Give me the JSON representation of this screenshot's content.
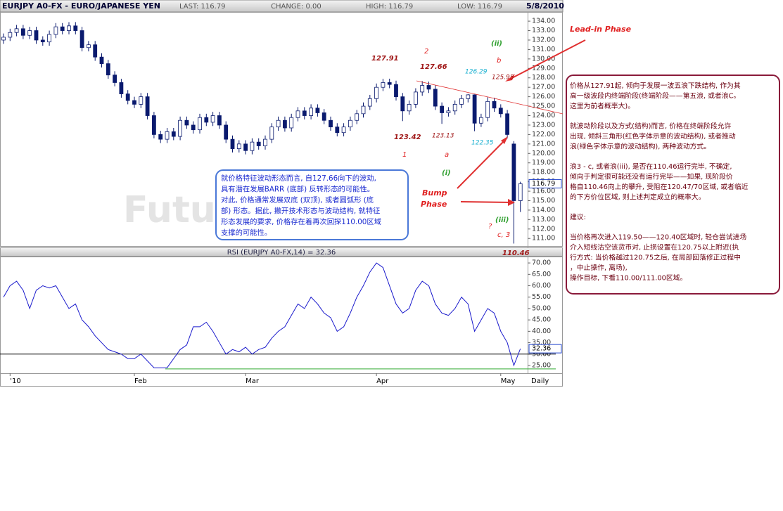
{
  "header": {
    "symbol": "EURJPY A0-FX - EURO/JAPANESE YEN",
    "last": "LAST: 116.79",
    "change": "CHANGE: 0.00",
    "high": "HIGH: 116.79",
    "low": "LOW: 116.79",
    "date": "5/8/2010"
  },
  "chart_data": {
    "type": "candlestick",
    "ylim": [
      110.2,
      134.9
    ],
    "yticks": [
      {
        "value": 134,
        "label": "134.00"
      },
      {
        "value": 133,
        "label": "133.00"
      },
      {
        "value": 132,
        "label": "132.00"
      },
      {
        "value": 131,
        "label": "131.00"
      },
      {
        "value": 130,
        "label": "130.00"
      },
      {
        "value": 129,
        "label": "129.00"
      },
      {
        "value": 128,
        "label": "128.00"
      },
      {
        "value": 127,
        "label": "127.00"
      },
      {
        "value": 126,
        "label": "126.00"
      },
      {
        "value": 125,
        "label": "125.00"
      },
      {
        "value": 124,
        "label": "124.00"
      },
      {
        "value": 123,
        "label": "123.00"
      },
      {
        "value": 122,
        "label": "122.00"
      },
      {
        "value": 121,
        "label": "121.00"
      },
      {
        "value": 120,
        "label": "120.00"
      },
      {
        "value": 119,
        "label": "119.00"
      },
      {
        "value": 118,
        "label": "118.00"
      },
      {
        "value": 117,
        "label": "117.00"
      },
      {
        "value": 116,
        "label": "116.00"
      },
      {
        "value": 115,
        "label": "115.00"
      },
      {
        "value": 114,
        "label": "114.00"
      },
      {
        "value": 113,
        "label": "113.00"
      },
      {
        "value": 112,
        "label": "112.00"
      },
      {
        "value": 111,
        "label": "111.00"
      }
    ],
    "last_price": {
      "value": 116.79,
      "label": "116.79"
    },
    "up_color": "#ffffff",
    "down_color": "#0a1a6e",
    "ohlc": [
      [
        132.0,
        132.7,
        131.6,
        132.3
      ],
      [
        132.3,
        133.2,
        131.9,
        132.8
      ],
      [
        132.8,
        133.6,
        132.4,
        133.2
      ],
      [
        133.2,
        133.6,
        132.1,
        132.5
      ],
      [
        132.5,
        133.4,
        132.1,
        133.0
      ],
      [
        133.0,
        133.4,
        131.6,
        132.0
      ],
      [
        132.0,
        132.4,
        131.4,
        131.8
      ],
      [
        131.8,
        133.0,
        131.4,
        132.6
      ],
      [
        132.6,
        133.8,
        132.2,
        133.4
      ],
      [
        133.4,
        133.8,
        132.6,
        133.0
      ],
      [
        133.0,
        133.9,
        132.6,
        133.5
      ],
      [
        133.5,
        133.9,
        132.6,
        133.0
      ],
      [
        133.0,
        133.4,
        130.8,
        131.2
      ],
      [
        131.2,
        131.9,
        130.8,
        131.5
      ],
      [
        131.5,
        131.9,
        129.8,
        130.2
      ],
      [
        130.2,
        130.6,
        129.1,
        129.5
      ],
      [
        129.5,
        129.9,
        127.9,
        128.3
      ],
      [
        128.3,
        128.7,
        127.1,
        127.5
      ],
      [
        127.5,
        127.9,
        125.9,
        126.3
      ],
      [
        126.3,
        126.7,
        125.2,
        125.6
      ],
      [
        125.6,
        126.0,
        124.8,
        125.2
      ],
      [
        125.2,
        126.4,
        124.8,
        126.0
      ],
      [
        126.0,
        126.4,
        123.6,
        124.0
      ],
      [
        124.0,
        124.4,
        121.6,
        122.0
      ],
      [
        122.0,
        122.4,
        121.1,
        121.5
      ],
      [
        121.5,
        122.7,
        121.1,
        122.3
      ],
      [
        122.3,
        122.7,
        121.4,
        121.8
      ],
      [
        121.8,
        123.9,
        121.4,
        123.5
      ],
      [
        123.5,
        123.9,
        122.6,
        123.0
      ],
      [
        123.0,
        123.4,
        122.1,
        122.5
      ],
      [
        122.5,
        124.2,
        122.1,
        123.8
      ],
      [
        123.8,
        124.2,
        122.9,
        123.3
      ],
      [
        123.3,
        124.4,
        122.9,
        124.0
      ],
      [
        124.0,
        124.4,
        122.6,
        123.0
      ],
      [
        123.0,
        123.4,
        121.1,
        121.5
      ],
      [
        121.5,
        121.9,
        120.1,
        120.5
      ],
      [
        120.5,
        121.4,
        120.1,
        121.0
      ],
      [
        121.0,
        121.4,
        119.9,
        120.3
      ],
      [
        120.3,
        121.6,
        119.9,
        121.2
      ],
      [
        121.2,
        121.6,
        120.4,
        120.8
      ],
      [
        120.8,
        121.9,
        120.4,
        121.5
      ],
      [
        121.5,
        123.2,
        121.1,
        122.8
      ],
      [
        122.8,
        123.9,
        122.4,
        123.5
      ],
      [
        123.5,
        123.9,
        122.3,
        122.7
      ],
      [
        122.7,
        124.2,
        122.3,
        123.8
      ],
      [
        123.8,
        124.9,
        123.4,
        124.5
      ],
      [
        124.5,
        124.9,
        123.6,
        124.0
      ],
      [
        124.0,
        125.2,
        123.6,
        124.8
      ],
      [
        124.8,
        125.2,
        123.9,
        124.3
      ],
      [
        124.3,
        124.7,
        123.1,
        123.5
      ],
      [
        123.5,
        123.9,
        122.4,
        122.8
      ],
      [
        122.8,
        123.2,
        121.8,
        122.2
      ],
      [
        122.2,
        123.2,
        121.8,
        122.8
      ],
      [
        122.8,
        123.9,
        122.4,
        123.5
      ],
      [
        123.5,
        124.6,
        123.1,
        124.2
      ],
      [
        124.2,
        125.4,
        123.8,
        125.0
      ],
      [
        125.0,
        126.2,
        124.6,
        125.8
      ],
      [
        125.8,
        127.4,
        125.4,
        127.0
      ],
      [
        127.0,
        127.9,
        126.6,
        127.5
      ],
      [
        127.5,
        127.91,
        126.9,
        127.3
      ],
      [
        127.3,
        127.7,
        125.6,
        126.0
      ],
      [
        126.0,
        126.4,
        123.42,
        124.5
      ],
      [
        124.5,
        125.6,
        124.1,
        125.2
      ],
      [
        125.2,
        126.9,
        124.8,
        126.5
      ],
      [
        126.5,
        127.66,
        126.1,
        127.2
      ],
      [
        127.2,
        127.6,
        126.4,
        126.8
      ],
      [
        126.8,
        127.2,
        124.6,
        125.0
      ],
      [
        125.0,
        125.4,
        123.13,
        124.3
      ],
      [
        124.3,
        124.9,
        123.9,
        124.5
      ],
      [
        124.5,
        125.6,
        124.1,
        125.2
      ],
      [
        125.2,
        126.2,
        124.8,
        125.8
      ],
      [
        125.8,
        126.29,
        125.4,
        126.2
      ],
      [
        126.2,
        126.25,
        122.35,
        123.2
      ],
      [
        123.2,
        124.2,
        122.8,
        123.8
      ],
      [
        123.8,
        125.95,
        123.4,
        125.5
      ],
      [
        125.5,
        125.9,
        124.4,
        124.8
      ],
      [
        124.8,
        125.2,
        123.8,
        124.2
      ],
      [
        124.2,
        124.6,
        121.6,
        122.0
      ],
      [
        121.0,
        121.3,
        110.46,
        115.0
      ],
      [
        115.0,
        117.0,
        113.8,
        116.79
      ]
    ],
    "date_labels": [
      {
        "index": 1,
        "label": "'10"
      },
      {
        "index": 20,
        "label": "Feb"
      },
      {
        "index": 37,
        "label": "Mar"
      },
      {
        "index": 57,
        "label": "Apr"
      },
      {
        "index": 76,
        "label": "May"
      }
    ],
    "period": "Daily",
    "rsi": {
      "title": "RSI (EURJPY A0-FX,14) = 32.36",
      "color": "#1a1acc",
      "ylim": [
        21.6,
        72.5
      ],
      "yticks": [
        {
          "value": 70,
          "label": "70.00"
        },
        {
          "value": 65,
          "label": "65.00"
        },
        {
          "value": 60,
          "label": "60.00"
        },
        {
          "value": 55,
          "label": "55.00"
        },
        {
          "value": 50,
          "label": "50.00"
        },
        {
          "value": 45,
          "label": "45.00"
        },
        {
          "value": 40,
          "label": "40.00"
        },
        {
          "value": 35,
          "label": "35.00"
        },
        {
          "value": 30,
          "label": "30.00"
        },
        {
          "value": 25,
          "label": "25.00"
        }
      ],
      "last": {
        "value": 32.36,
        "label": "32.36"
      },
      "reference_lines": [
        {
          "value": 30,
          "color": "#000000"
        },
        {
          "value": 23.5,
          "color": "#33aa33"
        }
      ],
      "values": [
        55,
        60,
        62,
        58,
        50,
        58,
        60,
        59,
        60,
        55,
        50,
        52,
        45,
        42,
        38,
        35,
        32,
        31,
        30,
        28,
        28,
        30,
        27,
        24,
        24,
        24,
        28,
        32,
        34,
        42,
        42,
        44,
        40,
        35,
        30,
        32,
        31,
        33,
        30,
        32,
        33,
        37,
        40,
        42,
        47,
        52,
        50,
        55,
        52,
        48,
        46,
        40,
        42,
        48,
        55,
        60,
        66,
        70,
        68,
        60,
        52,
        48,
        50,
        58,
        62,
        60,
        52,
        48,
        47,
        50,
        55,
        52,
        40,
        45,
        50,
        48,
        40,
        35,
        25,
        32.36
      ]
    }
  },
  "annotations": {
    "p12791": "127.91",
    "n2": "2",
    "p12766": "127.66",
    "p12629": "126.29",
    "ii": "(ii)",
    "b": "b",
    "p12595": "125.95",
    "p12342": "123.42",
    "p12313": "123.13",
    "p12235": "122.35",
    "n1": "1",
    "a": "a",
    "i": "(i)",
    "iii": "(iii)",
    "q": "?",
    "c3": "c, 3",
    "p11046": "110.46",
    "lead": "Lead-in Phase",
    "bump": "Bump",
    "phase": "Phase",
    "watermark": "Futur"
  },
  "left_note": [
    "就价格特征波动形态而言, 自127.66向下的波动,",
    "具有潜在发展BARR (底部) 反转形态的可能性。",
    "对此, 价格通常发展双底 (双顶), 或者圆弧形 (底",
    "部) 形态。据此, 撇开技术形态与波动结构, 就特征",
    "形态发展的要求, 价格存在着再次回探110.00区域",
    "支撑的可能性。"
  ],
  "right_note": [
    [
      "价格从127.91起, 倾向于发展一波五浪下跌结构, 作为其",
      "高一级波段内终端阶段(终端阶段——第五浪, 或者浪C。",
      "这里为前者概率大)。"
    ],
    [
      "就波动阶段以及方式(结构)而言, 价格在终端阶段允许",
      "出现, 倾斜三角形(红色字体示意的波动结构), 或者推动",
      "浪(绿色字体示意的波动结构), 两种波动方式。"
    ],
    [
      "浪3 - c, 或者浪(iii), 是否在110.46运行完毕, 不确定,",
      "倾向于判定很可能还没有运行完毕——如果, 现阶段价",
      "格自110.46向上的攀升, 受阻在120.47/70区域, 或者临近",
      "的下方价位区域, 则上述判定成立的概率大。"
    ],
    [
      "建议:"
    ],
    [
      "当价格再次进入119.50——120.40区域时, 轻仓尝试进场",
      "介入短线沽空该货币对, 止损设置在120.75以上附近(执",
      "行方式: 当价格越过120.75之后, 在局部回落修正过程中",
      "，中止操作, 离场),",
      "操作目标, 下看110.00/111.00区域。"
    ]
  ]
}
